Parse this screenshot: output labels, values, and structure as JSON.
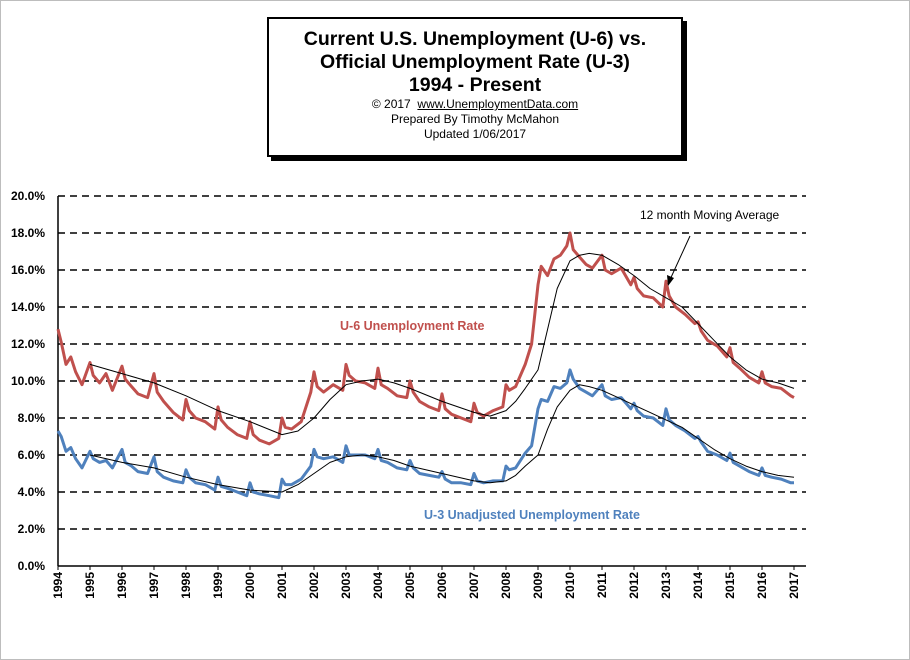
{
  "title_box": {
    "line1": "Current U.S. Unemployment (U-6) vs.",
    "line2": "Official Unemployment Rate (U-3)",
    "line3": "1994 - Present",
    "copyright_prefix": "© 2017",
    "copyright_site": "www.UnemploymentData.com",
    "prepared": "Prepared  By Timothy  McMahon",
    "updated": "Updated  1/06/2017"
  },
  "colors": {
    "u6": "#c0504d",
    "u3": "#4f81bd",
    "moving_average": "#000000",
    "grid": "#000000"
  },
  "chart_data": {
    "type": "line",
    "ylim": [
      0,
      20
    ],
    "xlim": [
      1994,
      2017
    ],
    "y_ticks": [
      "0.0%",
      "2.0%",
      "4.0%",
      "6.0%",
      "8.0%",
      "10.0%",
      "12.0%",
      "14.0%",
      "16.0%",
      "18.0%",
      "20.0%"
    ],
    "x_ticks": [
      "1994",
      "1995",
      "1996",
      "1997",
      "1998",
      "1999",
      "2000",
      "2001",
      "2002",
      "2003",
      "2004",
      "2005",
      "2006",
      "2007",
      "2008",
      "2009",
      "2010",
      "2011",
      "2012",
      "2013",
      "2014",
      "2015",
      "2016",
      "2017"
    ],
    "grid": "horizontal dashed",
    "annotation": "12 month Moving Average",
    "series": [
      {
        "name": "U-6 Unemployment Rate",
        "x": [
          1994.0,
          1994.1,
          1994.25,
          1994.4,
          1994.55,
          1994.75,
          1995.0,
          1995.1,
          1995.3,
          1995.5,
          1995.7,
          1996.0,
          1996.1,
          1996.3,
          1996.5,
          1996.8,
          1997.0,
          1997.1,
          1997.3,
          1997.6,
          1997.9,
          1998.0,
          1998.1,
          1998.3,
          1998.6,
          1998.9,
          1999.0,
          1999.1,
          1999.3,
          1999.6,
          1999.9,
          2000.0,
          2000.1,
          2000.3,
          2000.6,
          2000.9,
          2001.0,
          2001.1,
          2001.3,
          2001.6,
          2001.9,
          2002.0,
          2002.1,
          2002.3,
          2002.6,
          2002.9,
          2003.0,
          2003.1,
          2003.3,
          2003.6,
          2003.9,
          2004.0,
          2004.1,
          2004.3,
          2004.6,
          2004.9,
          2005.0,
          2005.1,
          2005.3,
          2005.6,
          2005.9,
          2006.0,
          2006.1,
          2006.3,
          2006.6,
          2006.9,
          2007.0,
          2007.1,
          2007.3,
          2007.6,
          2007.9,
          2008.0,
          2008.1,
          2008.3,
          2008.6,
          2008.8,
          2009.0,
          2009.1,
          2009.3,
          2009.5,
          2009.7,
          2009.9,
          2010.0,
          2010.1,
          2010.3,
          2010.5,
          2010.7,
          2011.0,
          2011.1,
          2011.3,
          2011.6,
          2011.9,
          2012.0,
          2012.1,
          2012.3,
          2012.6,
          2012.9,
          2013.0,
          2013.1,
          2013.3,
          2013.6,
          2013.9,
          2014.0,
          2014.1,
          2014.3,
          2014.6,
          2014.9,
          2015.0,
          2015.1,
          2015.3,
          2015.6,
          2015.9,
          2016.0,
          2016.1,
          2016.3,
          2016.6,
          2016.9,
          2017.0
        ],
        "values": [
          12.8,
          12.1,
          10.9,
          11.3,
          10.5,
          9.8,
          11.0,
          10.3,
          9.9,
          10.4,
          9.5,
          10.8,
          10.1,
          9.7,
          9.3,
          9.1,
          10.4,
          9.4,
          8.9,
          8.3,
          7.9,
          9.0,
          8.4,
          8.0,
          7.8,
          7.4,
          8.6,
          7.9,
          7.5,
          7.1,
          6.9,
          7.8,
          7.1,
          6.8,
          6.6,
          6.9,
          8.0,
          7.5,
          7.4,
          7.8,
          9.4,
          10.5,
          9.7,
          9.4,
          9.8,
          9.5,
          10.9,
          10.3,
          10.0,
          9.9,
          9.6,
          10.7,
          9.8,
          9.6,
          9.2,
          9.1,
          10.0,
          9.4,
          8.9,
          8.6,
          8.4,
          9.3,
          8.5,
          8.2,
          8.0,
          7.8,
          8.8,
          8.3,
          8.1,
          8.4,
          8.6,
          9.8,
          9.5,
          9.7,
          10.9,
          12.0,
          15.2,
          16.2,
          15.7,
          16.6,
          16.8,
          17.3,
          18.0,
          17.1,
          16.7,
          16.3,
          16.1,
          16.8,
          16.0,
          15.8,
          16.1,
          15.2,
          15.6,
          15.0,
          14.6,
          14.5,
          14.0,
          15.4,
          14.6,
          14.0,
          13.6,
          13.1,
          13.2,
          12.7,
          12.2,
          11.9,
          11.3,
          11.8,
          11.0,
          10.7,
          10.2,
          9.9,
          10.5,
          9.9,
          9.7,
          9.6,
          9.2,
          9.1
        ]
      },
      {
        "name": "U-6 12 month Moving Average",
        "x": [
          1995.0,
          1996.0,
          1997.0,
          1998.0,
          1999.0,
          2000.0,
          2001.0,
          2001.5,
          2002.0,
          2002.5,
          2003.0,
          2003.5,
          2004.0,
          2004.5,
          2005.0,
          2006.0,
          2007.0,
          2007.5,
          2008.0,
          2008.3,
          2008.6,
          2009.0,
          2009.3,
          2009.6,
          2010.0,
          2010.3,
          2010.6,
          2011.0,
          2011.5,
          2012.0,
          2012.5,
          2013.0,
          2013.5,
          2014.0,
          2014.5,
          2015.0,
          2015.5,
          2016.0,
          2016.5,
          2017.0
        ],
        "values": [
          10.9,
          10.4,
          9.9,
          9.2,
          8.4,
          7.8,
          7.1,
          7.3,
          8.0,
          9.0,
          9.8,
          10.0,
          10.1,
          9.9,
          9.6,
          8.9,
          8.3,
          8.1,
          8.4,
          8.9,
          9.6,
          10.6,
          12.8,
          15.0,
          16.5,
          16.8,
          16.9,
          16.8,
          16.3,
          15.7,
          15.0,
          14.5,
          14.0,
          13.1,
          12.2,
          11.3,
          10.6,
          10.1,
          9.9,
          9.6
        ]
      },
      {
        "name": "U-3  Unadjusted Unemployment Rate",
        "x": [
          1994.0,
          1994.1,
          1994.25,
          1994.4,
          1994.55,
          1994.75,
          1995.0,
          1995.1,
          1995.3,
          1995.5,
          1995.7,
          1996.0,
          1996.1,
          1996.3,
          1996.5,
          1996.8,
          1997.0,
          1997.1,
          1997.3,
          1997.6,
          1997.9,
          1998.0,
          1998.1,
          1998.3,
          1998.6,
          1998.9,
          1999.0,
          1999.1,
          1999.3,
          1999.6,
          1999.9,
          2000.0,
          2000.1,
          2000.3,
          2000.6,
          2000.9,
          2001.0,
          2001.1,
          2001.3,
          2001.6,
          2001.9,
          2002.0,
          2002.1,
          2002.3,
          2002.6,
          2002.9,
          2003.0,
          2003.1,
          2003.3,
          2003.6,
          2003.9,
          2004.0,
          2004.1,
          2004.3,
          2004.6,
          2004.9,
          2005.0,
          2005.1,
          2005.3,
          2005.6,
          2005.9,
          2006.0,
          2006.1,
          2006.3,
          2006.6,
          2006.9,
          2007.0,
          2007.1,
          2007.3,
          2007.6,
          2007.9,
          2008.0,
          2008.1,
          2008.3,
          2008.6,
          2008.8,
          2009.0,
          2009.1,
          2009.3,
          2009.5,
          2009.7,
          2009.9,
          2010.0,
          2010.1,
          2010.3,
          2010.5,
          2010.7,
          2011.0,
          2011.1,
          2011.3,
          2011.6,
          2011.9,
          2012.0,
          2012.1,
          2012.3,
          2012.6,
          2012.9,
          2013.0,
          2013.1,
          2013.3,
          2013.6,
          2013.9,
          2014.0,
          2014.1,
          2014.3,
          2014.6,
          2014.9,
          2015.0,
          2015.1,
          2015.3,
          2015.6,
          2015.9,
          2016.0,
          2016.1,
          2016.3,
          2016.6,
          2016.9,
          2017.0
        ],
        "values": [
          7.3,
          7.0,
          6.2,
          6.4,
          5.8,
          5.3,
          6.2,
          5.8,
          5.6,
          5.7,
          5.3,
          6.3,
          5.6,
          5.4,
          5.1,
          5.0,
          5.9,
          5.1,
          4.8,
          4.6,
          4.5,
          5.2,
          4.8,
          4.5,
          4.4,
          4.1,
          4.8,
          4.3,
          4.2,
          4.0,
          3.8,
          4.5,
          4.0,
          3.9,
          3.8,
          3.7,
          4.7,
          4.4,
          4.4,
          4.7,
          5.4,
          6.3,
          5.9,
          5.8,
          5.9,
          5.6,
          6.5,
          6.0,
          6.0,
          6.0,
          5.8,
          6.3,
          5.7,
          5.6,
          5.3,
          5.2,
          5.7,
          5.3,
          5.0,
          4.9,
          4.8,
          5.1,
          4.7,
          4.5,
          4.5,
          4.4,
          5.0,
          4.6,
          4.5,
          4.6,
          4.6,
          5.4,
          5.2,
          5.3,
          6.1,
          6.5,
          8.5,
          9.0,
          8.9,
          9.7,
          9.6,
          9.9,
          10.6,
          10.1,
          9.6,
          9.4,
          9.2,
          9.8,
          9.2,
          9.0,
          9.1,
          8.5,
          8.8,
          8.4,
          8.1,
          8.0,
          7.6,
          8.5,
          7.9,
          7.6,
          7.3,
          6.9,
          7.0,
          6.7,
          6.2,
          6.0,
          5.7,
          6.1,
          5.6,
          5.4,
          5.1,
          4.9,
          5.3,
          4.9,
          4.8,
          4.7,
          4.5,
          4.5
        ]
      },
      {
        "name": "U-3 12 month Moving Average",
        "x": [
          1995.0,
          1996.0,
          1997.0,
          1998.0,
          1999.0,
          2000.0,
          2001.0,
          2001.5,
          2002.0,
          2002.5,
          2003.0,
          2003.5,
          2004.0,
          2004.5,
          2005.0,
          2006.0,
          2007.0,
          2007.5,
          2008.0,
          2008.3,
          2008.6,
          2009.0,
          2009.3,
          2009.6,
          2010.0,
          2010.3,
          2010.6,
          2011.0,
          2011.5,
          2012.0,
          2012.5,
          2013.0,
          2013.5,
          2014.0,
          2014.5,
          2015.0,
          2015.5,
          2016.0,
          2016.5,
          2017.0
        ],
        "values": [
          6.0,
          5.6,
          5.3,
          4.8,
          4.4,
          4.1,
          4.0,
          4.4,
          5.0,
          5.6,
          5.9,
          6.0,
          5.9,
          5.7,
          5.4,
          5.0,
          4.6,
          4.5,
          4.6,
          4.9,
          5.4,
          6.0,
          7.4,
          8.6,
          9.5,
          9.8,
          9.7,
          9.5,
          9.1,
          8.7,
          8.3,
          7.9,
          7.5,
          6.9,
          6.3,
          5.8,
          5.4,
          5.1,
          4.9,
          4.8
        ]
      }
    ]
  }
}
